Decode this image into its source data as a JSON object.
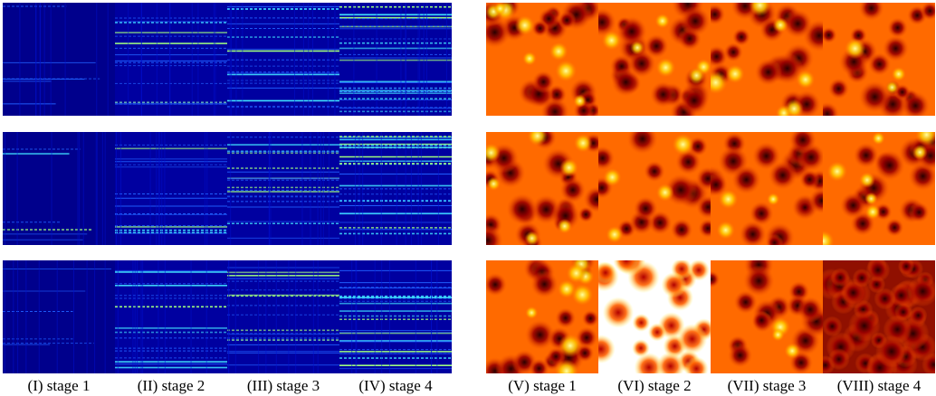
{
  "captions": [
    "(I) stage 1",
    "(II) stage 2",
    "(III) stage 3",
    "(IV) stage 4",
    "(V) stage 1",
    "(VI) stage 2",
    "(VII) stage 3",
    "(VIII) stage 4"
  ]
}
